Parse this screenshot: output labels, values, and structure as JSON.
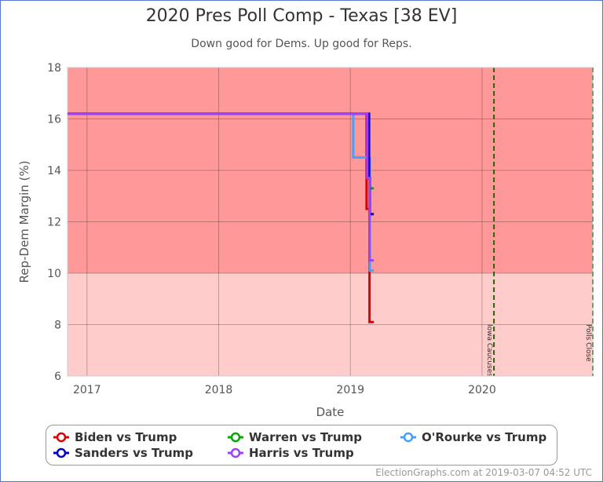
{
  "header": {
    "title": "2020 Pres Poll Comp - Texas [38 EV]",
    "subtitle": "Down good for Dems. Up good for Reps."
  },
  "chart_data": {
    "type": "line",
    "xlabel": "Date",
    "ylabel": "Rep-Dem Margin (%)",
    "xlim": [
      "2016-11-08",
      "2020-11-03"
    ],
    "ylim": [
      6,
      18
    ],
    "yticks": [
      "6",
      "8",
      "10",
      "12",
      "14",
      "16",
      "18"
    ],
    "xticks": [
      {
        "date": "2017-01-01",
        "label": "2017"
      },
      {
        "date": "2018-01-01",
        "label": "2018"
      },
      {
        "date": "2019-01-01",
        "label": "2019"
      },
      {
        "date": "2020-01-01",
        "label": "2020"
      }
    ],
    "grid": true,
    "bands": [
      {
        "from": 10,
        "to": 18,
        "color": "#ff9999"
      },
      {
        "from": 6,
        "to": 10,
        "color": "#ffcccc"
      }
    ],
    "events": [
      {
        "date": "2020-02-03",
        "label": "Iowa Caucuses"
      },
      {
        "date": "2020-11-03",
        "label": "Polls Close"
      }
    ],
    "event_color": "#226600",
    "legend_placement": "bottom",
    "series": [
      {
        "name": "Biden vs Trump",
        "color": "#dd0000",
        "points": [
          [
            "2016-11-08",
            16.2
          ],
          [
            "2019-02-15",
            16.2
          ],
          [
            "2019-02-15",
            13.7
          ],
          [
            "2019-02-15",
            12.5
          ],
          [
            "2019-02-23",
            12.5
          ],
          [
            "2019-02-23",
            8.1
          ],
          [
            "2019-03-07",
            8.1
          ]
        ]
      },
      {
        "name": "Warren vs Trump",
        "color": "#00aa00",
        "points": [
          [
            "2019-02-26",
            13.3
          ],
          [
            "2019-03-07",
            13.3
          ]
        ]
      },
      {
        "name": "O'Rourke vs Trump",
        "color": "#44a0ff",
        "points": [
          [
            "2016-11-08",
            16.2
          ],
          [
            "2019-01-09",
            16.2
          ],
          [
            "2019-01-09",
            14.5
          ],
          [
            "2019-02-22",
            14.5
          ],
          [
            "2019-02-24",
            14.5
          ],
          [
            "2019-02-24",
            10.1
          ],
          [
            "2019-03-07",
            10.1
          ]
        ]
      },
      {
        "name": "Sanders vs Trump",
        "color": "#0000cc",
        "points": [
          [
            "2016-11-08",
            16.2
          ],
          [
            "2019-02-22",
            16.2
          ],
          [
            "2019-02-22",
            13.7
          ],
          [
            "2019-02-24",
            13.7
          ],
          [
            "2019-02-24",
            12.3
          ],
          [
            "2019-03-07",
            12.3
          ]
        ]
      },
      {
        "name": "Harris vs Trump",
        "color": "#a040ff",
        "points": [
          [
            "2016-11-08",
            16.2
          ],
          [
            "2019-02-17",
            16.2
          ],
          [
            "2019-02-17",
            13.7
          ],
          [
            "2019-02-23",
            13.7
          ],
          [
            "2019-02-23",
            10.5
          ],
          [
            "2019-03-07",
            10.5
          ]
        ]
      }
    ]
  },
  "legend": [
    {
      "label": "Biden vs Trump",
      "color": "#dd0000"
    },
    {
      "label": "Warren vs Trump",
      "color": "#00aa00"
    },
    {
      "label": "O'Rourke vs Trump",
      "color": "#44a0ff"
    },
    {
      "label": "Sanders vs Trump",
      "color": "#0000cc"
    },
    {
      "label": "Harris vs Trump",
      "color": "#a040ff"
    }
  ],
  "footer": {
    "credit": "ElectionGraphs.com at 2019-03-07 04:52 UTC"
  }
}
